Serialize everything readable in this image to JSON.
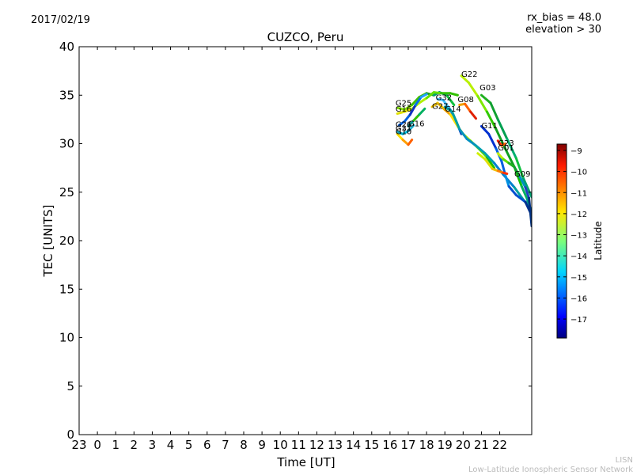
{
  "header": {
    "date": "2017/02/19",
    "rx_bias": "rx_bias = 48.0",
    "elevation": "elevation > 30"
  },
  "footer": {
    "credit_line1": "LISN",
    "credit_line2": "Low-Latitude Ionospheric Sensor Network"
  },
  "chart_data": {
    "type": "line",
    "title": "CUZCO, Peru",
    "xlabel": "Time [UT]",
    "ylabel": "TEC [UNITS]",
    "x_tick_labels": [
      "23",
      "0",
      "1",
      "2",
      "3",
      "4",
      "5",
      "6",
      "7",
      "8",
      "9",
      "10",
      "11",
      "12",
      "13",
      "14",
      "15",
      "16",
      "17",
      "18",
      "19",
      "20",
      "21",
      "22"
    ],
    "xlim": [
      -1,
      23.75
    ],
    "ylim": [
      0,
      40
    ],
    "y_ticks": [
      0,
      5,
      10,
      15,
      20,
      25,
      30,
      35,
      40
    ],
    "colorbar": {
      "label": "Latitude",
      "range": [
        -17.9,
        -8.7
      ],
      "ticks": [
        -9,
        -10,
        -11,
        -12,
        -13,
        -14,
        -15,
        -16,
        -17
      ]
    },
    "series": [
      {
        "name": "G22",
        "label_at": [
          19.9,
          36.9
        ],
        "colors": [
          "#b8f000",
          "#7ee800",
          "#30c800",
          "#10a020",
          "#10a020",
          "#10c000",
          "#00b060",
          "#00a080"
        ],
        "points": [
          [
            19.9,
            37.0
          ],
          [
            20.3,
            36.3
          ],
          [
            20.8,
            34.9
          ],
          [
            21.3,
            33.3
          ],
          [
            21.8,
            31.5
          ],
          [
            22.3,
            29.5
          ],
          [
            22.8,
            27.6
          ],
          [
            23.2,
            25.6
          ],
          [
            23.5,
            24.3
          ],
          [
            23.75,
            22.5
          ]
        ]
      },
      {
        "name": "G03",
        "label_at": [
          20.9,
          35.5
        ],
        "colors": [
          "#20b020",
          "#10a030",
          "#00a050",
          "#00b070",
          "#10c040",
          "#00a070"
        ],
        "points": [
          [
            21.0,
            35.0
          ],
          [
            21.5,
            34.2
          ],
          [
            21.9,
            32.5
          ],
          [
            22.4,
            30.5
          ],
          [
            22.9,
            28.5
          ],
          [
            23.3,
            26.4
          ],
          [
            23.75,
            24.5
          ]
        ]
      },
      {
        "name": "G08",
        "label_at": [
          19.7,
          34.3
        ],
        "colors": [
          "#f0a000",
          "#ff6000",
          "#e02000",
          "#d00000"
        ],
        "points": [
          [
            19.8,
            34.0
          ],
          [
            20.1,
            34.1
          ],
          [
            20.4,
            33.3
          ],
          [
            20.7,
            32.6
          ]
        ]
      },
      {
        "name": "G32",
        "label_at": [
          18.5,
          34.5
        ],
        "colors": [
          "#40c0ff",
          "#0080e0",
          "#0040c0"
        ],
        "points": [
          [
            18.6,
            34.6
          ],
          [
            18.9,
            34.5
          ],
          [
            19.3,
            33.5
          ],
          [
            19.6,
            32.4
          ],
          [
            19.9,
            31.0
          ]
        ]
      },
      {
        "name": "G27",
        "label_at": [
          18.3,
          33.6
        ],
        "colors": [
          "#f0c000",
          "#f0a000",
          "#ffe000",
          "#b0f000",
          "#60e000",
          "#20c000"
        ],
        "points": [
          [
            18.3,
            33.8
          ],
          [
            18.6,
            34.2
          ],
          [
            19.0,
            33.5
          ],
          [
            19.3,
            33.0
          ],
          [
            19.7,
            31.8
          ],
          [
            20.0,
            31.0
          ],
          [
            20.4,
            30.3
          ],
          [
            20.9,
            29.4
          ],
          [
            21.3,
            28.6
          ],
          [
            21.7,
            27.5
          ]
        ]
      },
      {
        "name": "G14",
        "label_at": [
          19.0,
          33.3
        ],
        "colors": [
          "#00a0a0",
          "#0090c0",
          "#00a0b0",
          "#0080d0",
          "#00a0a0"
        ],
        "points": [
          [
            19.0,
            33.8
          ],
          [
            19.4,
            33.3
          ],
          [
            19.8,
            31.5
          ],
          [
            20.2,
            30.5
          ],
          [
            20.7,
            29.8
          ],
          [
            21.2,
            29.0
          ],
          [
            21.7,
            28.0
          ],
          [
            22.2,
            26.8
          ],
          [
            22.8,
            25.5
          ],
          [
            23.3,
            24.2
          ],
          [
            23.75,
            23.2
          ]
        ]
      },
      {
        "name": "G25",
        "label_at": [
          16.3,
          33.9
        ],
        "colors": [
          "#80e000",
          "#40c000",
          "#20a020",
          "#00a070",
          "#10c040"
        ],
        "points": [
          [
            16.4,
            33.7
          ],
          [
            16.8,
            33.5
          ],
          [
            17.2,
            34.0
          ],
          [
            17.6,
            34.8
          ],
          [
            18.0,
            35.2
          ],
          [
            18.4,
            35.0
          ],
          [
            18.7,
            35.3
          ],
          [
            19.1,
            35.0
          ],
          [
            19.5,
            34.0
          ]
        ]
      },
      {
        "name": "G16",
        "label_at": [
          16.3,
          33.3
        ],
        "colors": [
          "#e0e000",
          "#b0f000",
          "#60e000",
          "#30c000"
        ],
        "points": [
          [
            16.4,
            33.1
          ],
          [
            16.8,
            33.3
          ],
          [
            17.2,
            33.6
          ],
          [
            17.6,
            34.2
          ],
          [
            18.0,
            34.7
          ],
          [
            18.4,
            35.3
          ],
          [
            18.8,
            35.2
          ],
          [
            19.3,
            35.2
          ],
          [
            19.7,
            35.0
          ]
        ]
      },
      {
        "name": "G16",
        "label_at": [
          17.0,
          31.8
        ],
        "colors": [
          "#00a0a0",
          "#30c000",
          "#00b060"
        ],
        "points": [
          [
            17.0,
            31.8
          ],
          [
            17.3,
            32.4
          ],
          [
            17.6,
            33.0
          ],
          [
            17.9,
            33.6
          ]
        ]
      },
      {
        "name": "G26",
        "label_at": [
          16.3,
          31.7
        ],
        "colors": [
          "#0060e0",
          "#1030c0",
          "#0070f0",
          "#20a0ff"
        ],
        "points": [
          [
            16.5,
            31.9
          ],
          [
            16.8,
            32.3
          ],
          [
            17.1,
            33.0
          ],
          [
            17.4,
            34.0
          ],
          [
            17.7,
            34.8
          ],
          [
            18.0,
            35.1
          ]
        ]
      },
      {
        "name": "G10",
        "label_at": [
          16.3,
          31.0
        ],
        "colors": [
          "#00a0c0",
          "#00c0e0",
          "#20b0d0"
        ],
        "points": [
          [
            16.4,
            31.2
          ],
          [
            16.7,
            31.0
          ],
          [
            17.0,
            31.3
          ],
          [
            17.3,
            31.9
          ]
        ]
      },
      {
        "name": "G31",
        "label_at": [
          16.3,
          31.3
        ],
        "colors": [
          "#ffe000",
          "#ffa000",
          "#ff6000",
          "#ff3000"
        ],
        "points": [
          [
            16.4,
            31.0
          ],
          [
            16.7,
            30.4
          ],
          [
            17.0,
            29.9
          ],
          [
            17.2,
            30.4
          ]
        ]
      },
      {
        "name": "G11",
        "label_at": [
          21.0,
          31.6
        ],
        "colors": [
          "#0030d0",
          "#0060e0",
          "#0090e0",
          "#0050d0",
          "#003090"
        ],
        "points": [
          [
            21.0,
            31.8
          ],
          [
            21.4,
            31.0
          ],
          [
            21.8,
            29.5
          ],
          [
            22.1,
            28.2
          ],
          [
            22.3,
            26.8
          ],
          [
            22.5,
            25.6
          ],
          [
            22.9,
            24.7
          ],
          [
            23.4,
            24.0
          ],
          [
            23.75,
            22.6
          ]
        ]
      },
      {
        "name": "G23",
        "label_at": [
          21.9,
          29.8
        ],
        "colors": [
          "#ff2000",
          "#ff6000",
          "#d00000"
        ],
        "points": [
          [
            21.9,
            30.3
          ],
          [
            22.1,
            29.8
          ],
          [
            22.3,
            30.0
          ]
        ]
      },
      {
        "name": "G01",
        "label_at": [
          21.9,
          29.3
        ],
        "colors": [
          "#d0f000",
          "#e0e000",
          "#f0c000",
          "#ff8000",
          "#ff3000",
          "#d00000"
        ],
        "points": [
          [
            20.8,
            29.0
          ],
          [
            21.2,
            28.4
          ],
          [
            21.6,
            27.4
          ],
          [
            21.9,
            27.2
          ],
          [
            22.2,
            27.0
          ],
          [
            22.4,
            26.9
          ]
        ]
      },
      {
        "name": "G09",
        "label_at": [
          22.8,
          26.6
        ],
        "colors": [
          "#c0f000",
          "#60e000",
          "#20b020",
          "#10a030",
          "#0090c0",
          "#2040c0",
          "#003080"
        ],
        "points": [
          [
            21.9,
            29.0
          ],
          [
            22.2,
            28.4
          ],
          [
            22.5,
            28.0
          ],
          [
            22.8,
            27.6
          ],
          [
            23.1,
            26.6
          ],
          [
            23.4,
            25.5
          ],
          [
            23.6,
            24.4
          ],
          [
            23.75,
            21.5
          ]
        ]
      }
    ]
  }
}
